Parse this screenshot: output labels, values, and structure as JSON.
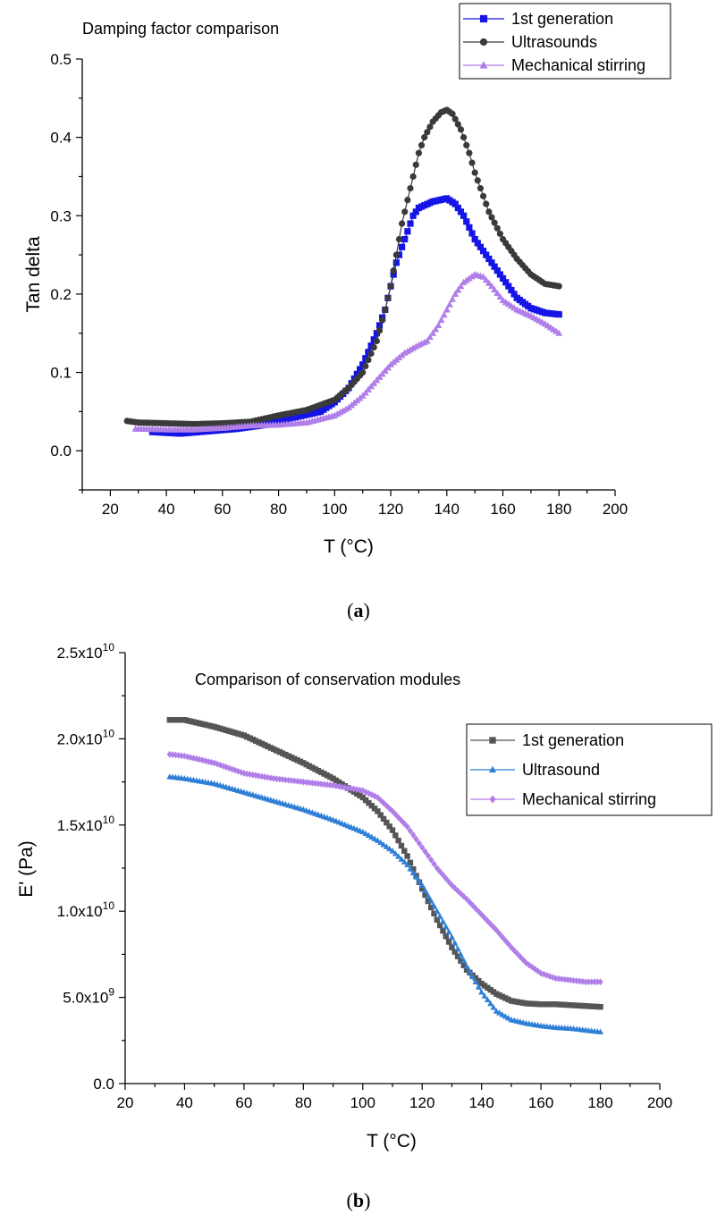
{
  "captions": {
    "a_open": "(",
    "a_letter": "a",
    "a_close": ")",
    "b_open": "(",
    "b_letter": "b",
    "b_close": ")"
  },
  "chart_data": [
    {
      "type": "scatter",
      "title": "Damping factor comparison",
      "xlabel": "T (°C)",
      "ylabel": "Tan delta",
      "xlim": [
        10,
        200
      ],
      "ylim": [
        -0.05,
        0.5
      ],
      "x_ticks": [
        "20",
        "40",
        "60",
        "80",
        "100",
        "120",
        "140",
        "160",
        "180",
        "200"
      ],
      "y_ticks": [
        "0.0",
        "0.1",
        "0.2",
        "0.3",
        "0.4",
        "0.5"
      ],
      "legend_position": "top-right",
      "series": [
        {
          "name": "1st generation",
          "color": "#1515e6",
          "marker": "square",
          "points": [
            [
              35,
              0.024
            ],
            [
              45,
              0.022
            ],
            [
              55,
              0.025
            ],
            [
              65,
              0.028
            ],
            [
              75,
              0.033
            ],
            [
              85,
              0.042
            ],
            [
              95,
              0.05
            ],
            [
              100,
              0.062
            ],
            [
              105,
              0.08
            ],
            [
              110,
              0.11
            ],
            [
              115,
              0.15
            ],
            [
              118,
              0.18
            ],
            [
              120,
              0.21
            ],
            [
              122,
              0.24
            ],
            [
              124,
              0.26
            ],
            [
              126,
              0.28
            ],
            [
              128,
              0.3
            ],
            [
              130,
              0.31
            ],
            [
              135,
              0.318
            ],
            [
              140,
              0.322
            ],
            [
              143,
              0.315
            ],
            [
              146,
              0.3
            ],
            [
              150,
              0.27
            ],
            [
              155,
              0.245
            ],
            [
              160,
              0.22
            ],
            [
              165,
              0.195
            ],
            [
              170,
              0.182
            ],
            [
              175,
              0.176
            ],
            [
              180,
              0.174
            ]
          ]
        },
        {
          "name": "Ultrasounds",
          "color": "#3a3a3a",
          "marker": "circle",
          "points": [
            [
              26,
              0.038
            ],
            [
              30,
              0.036
            ],
            [
              40,
              0.035
            ],
            [
              50,
              0.034
            ],
            [
              60,
              0.035
            ],
            [
              70,
              0.037
            ],
            [
              80,
              0.045
            ],
            [
              90,
              0.052
            ],
            [
              100,
              0.065
            ],
            [
              105,
              0.08
            ],
            [
              110,
              0.1
            ],
            [
              115,
              0.14
            ],
            [
              118,
              0.18
            ],
            [
              120,
              0.21
            ],
            [
              122,
              0.25
            ],
            [
              124,
              0.29
            ],
            [
              126,
              0.32
            ],
            [
              128,
              0.35
            ],
            [
              130,
              0.38
            ],
            [
              132,
              0.4
            ],
            [
              135,
              0.42
            ],
            [
              138,
              0.432
            ],
            [
              140,
              0.435
            ],
            [
              142,
              0.43
            ],
            [
              145,
              0.41
            ],
            [
              148,
              0.38
            ],
            [
              150,
              0.355
            ],
            [
              155,
              0.305
            ],
            [
              160,
              0.27
            ],
            [
              165,
              0.245
            ],
            [
              170,
              0.225
            ],
            [
              175,
              0.213
            ],
            [
              180,
              0.21
            ]
          ]
        },
        {
          "name": "Mechanical stirring",
          "color": "#b07ee8",
          "marker": "triangle",
          "points": [
            [
              29,
              0.028
            ],
            [
              40,
              0.027
            ],
            [
              50,
              0.027
            ],
            [
              60,
              0.029
            ],
            [
              70,
              0.032
            ],
            [
              80,
              0.033
            ],
            [
              90,
              0.036
            ],
            [
              100,
              0.045
            ],
            [
              105,
              0.055
            ],
            [
              110,
              0.07
            ],
            [
              115,
              0.09
            ],
            [
              120,
              0.11
            ],
            [
              125,
              0.125
            ],
            [
              130,
              0.135
            ],
            [
              133,
              0.14
            ],
            [
              137,
              0.16
            ],
            [
              140,
              0.18
            ],
            [
              143,
              0.2
            ],
            [
              146,
              0.215
            ],
            [
              150,
              0.225
            ],
            [
              153,
              0.222
            ],
            [
              156,
              0.21
            ],
            [
              160,
              0.192
            ],
            [
              165,
              0.18
            ],
            [
              170,
              0.172
            ],
            [
              175,
              0.162
            ],
            [
              180,
              0.15
            ]
          ]
        }
      ]
    },
    {
      "type": "scatter",
      "title": "Comparison of conservation modules",
      "xlabel": "T (°C)",
      "ylabel": "E' (Pa)",
      "xlim": [
        20,
        200
      ],
      "ylim": [
        0,
        25000000000
      ],
      "x_ticks": [
        "20",
        "40",
        "60",
        "80",
        "100",
        "120",
        "140",
        "160",
        "180",
        "200"
      ],
      "y_ticks": [
        {
          "mant": "0.0",
          "exp": ""
        },
        {
          "mant": "5.0x10",
          "exp": "9"
        },
        {
          "mant": "1.0x10",
          "exp": "10"
        },
        {
          "mant": "1.5x10",
          "exp": "10"
        },
        {
          "mant": "2.0x10",
          "exp": "10"
        },
        {
          "mant": "2.5x10",
          "exp": "10"
        }
      ],
      "legend_position": "top-right",
      "series": [
        {
          "name": "1st generation",
          "color": "#555555",
          "marker": "square",
          "points": [
            [
              35,
              21100000000.0
            ],
            [
              40,
              21100000000.0
            ],
            [
              45,
              20900000000.0
            ],
            [
              50,
              20700000000.0
            ],
            [
              60,
              20200000000.0
            ],
            [
              70,
              19400000000.0
            ],
            [
              80,
              18600000000.0
            ],
            [
              90,
              17700000000.0
            ],
            [
              100,
              16600000000.0
            ],
            [
              105,
              15800000000.0
            ],
            [
              110,
              14700000000.0
            ],
            [
              115,
              13200000000.0
            ],
            [
              120,
              11300000000.0
            ],
            [
              125,
              9500000000.0
            ],
            [
              130,
              7900000000.0
            ],
            [
              135,
              6600000000.0
            ],
            [
              140,
              5800000000.0
            ],
            [
              145,
              5200000000.0
            ],
            [
              150,
              4800000000.0
            ],
            [
              155,
              4650000000.0
            ],
            [
              160,
              4600000000.0
            ],
            [
              165,
              4600000000.0
            ],
            [
              170,
              4550000000.0
            ],
            [
              175,
              4500000000.0
            ],
            [
              180,
              4450000000.0
            ]
          ]
        },
        {
          "name": "Ultrasound",
          "color": "#2e7fd6",
          "marker": "triangle",
          "points": [
            [
              35,
              17800000000.0
            ],
            [
              40,
              17700000000.0
            ],
            [
              50,
              17400000000.0
            ],
            [
              60,
              16900000000.0
            ],
            [
              70,
              16400000000.0
            ],
            [
              80,
              15900000000.0
            ],
            [
              90,
              15300000000.0
            ],
            [
              100,
              14600000000.0
            ],
            [
              105,
              14100000000.0
            ],
            [
              110,
              13500000000.0
            ],
            [
              115,
              12700000000.0
            ],
            [
              120,
              11500000000.0
            ],
            [
              125,
              10000000000.0
            ],
            [
              130,
              8500000000.0
            ],
            [
              135,
              6800000000.0
            ],
            [
              140,
              5300000000.0
            ],
            [
              145,
              4200000000.0
            ],
            [
              150,
              3700000000.0
            ],
            [
              155,
              3500000000.0
            ],
            [
              160,
              3350000000.0
            ],
            [
              165,
              3250000000.0
            ],
            [
              170,
              3200000000.0
            ],
            [
              175,
              3100000000.0
            ],
            [
              180,
              3000000000.0
            ]
          ]
        },
        {
          "name": "Mechanical stirring",
          "color": "#b07ee8",
          "marker": "diamond",
          "points": [
            [
              35,
              19100000000.0
            ],
            [
              40,
              19000000000.0
            ],
            [
              50,
              18600000000.0
            ],
            [
              60,
              18000000000.0
            ],
            [
              70,
              17700000000.0
            ],
            [
              80,
              17500000000.0
            ],
            [
              90,
              17300000000.0
            ],
            [
              100,
              17000000000.0
            ],
            [
              105,
              16600000000.0
            ],
            [
              110,
              15800000000.0
            ],
            [
              115,
              14900000000.0
            ],
            [
              120,
              13700000000.0
            ],
            [
              125,
              12500000000.0
            ],
            [
              130,
              11500000000.0
            ],
            [
              135,
              10700000000.0
            ],
            [
              140,
              9800000000.0
            ],
            [
              145,
              8900000000.0
            ],
            [
              150,
              7900000000.0
            ],
            [
              155,
              7000000000.0
            ],
            [
              160,
              6400000000.0
            ],
            [
              165,
              6100000000.0
            ],
            [
              170,
              6000000000.0
            ],
            [
              175,
              5900000000.0
            ],
            [
              180,
              5900000000.0
            ]
          ]
        }
      ]
    }
  ]
}
